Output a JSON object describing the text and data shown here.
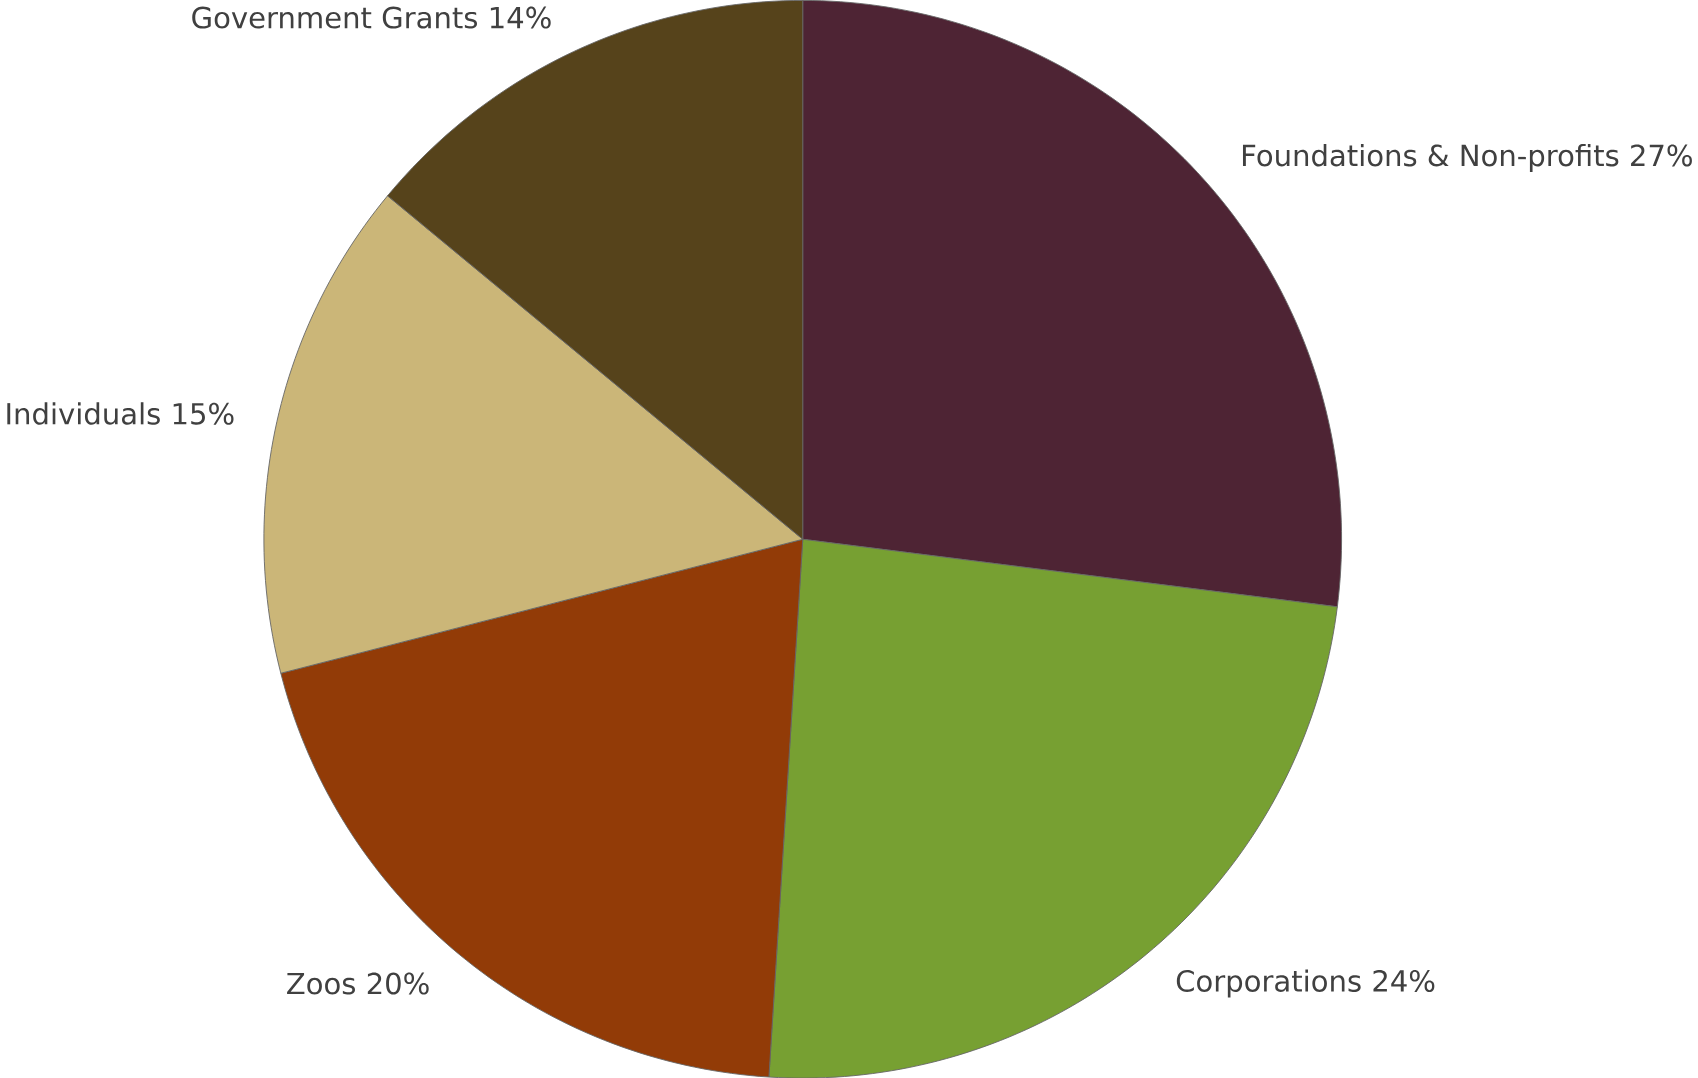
{
  "chart_data": {
    "type": "pie",
    "categories": [
      "Foundations & Non-profits",
      "Corporations",
      "Zoos",
      "Individuals",
      "Government Grants"
    ],
    "values": [
      27,
      24,
      20,
      15,
      14
    ],
    "value_labels": [
      "27%",
      "24%",
      "20%",
      "15%",
      "14%"
    ],
    "colors": [
      "#4e2434",
      "#77a032",
      "#923b07",
      "#cbb678",
      "#56431b"
    ]
  }
}
